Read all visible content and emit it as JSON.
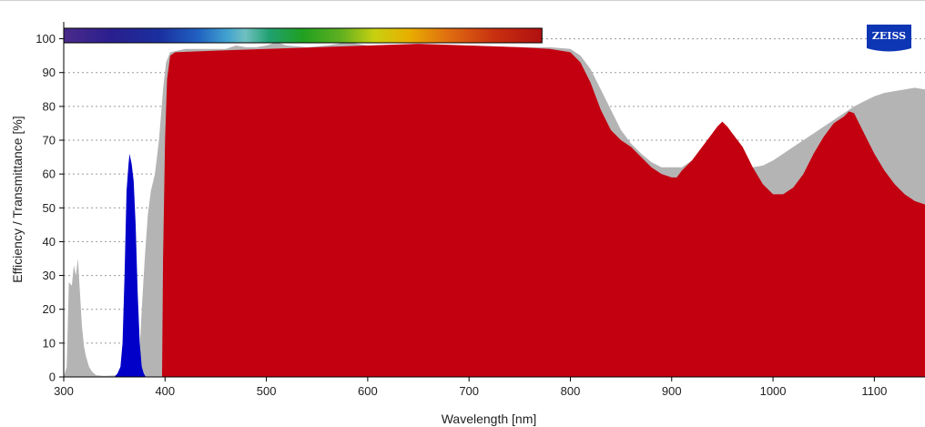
{
  "chart_data": {
    "type": "area",
    "xlabel": "Wavelength [nm]",
    "ylabel": "Efficiency / Transmittance [%]",
    "xlim": [
      300,
      1150
    ],
    "ylim": [
      0,
      105
    ],
    "x_ticks": [
      300,
      400,
      500,
      600,
      700,
      800,
      900,
      1000,
      1100
    ],
    "y_ticks": [
      0,
      10,
      20,
      30,
      40,
      50,
      60,
      70,
      80,
      90,
      100
    ],
    "grid": "horizontal dotted",
    "spectrum_bar": {
      "range_nm": [
        300,
        772
      ]
    },
    "logo": "ZEISS",
    "series": [
      {
        "color": "#b4b4b4",
        "points": [
          [
            300,
            0
          ],
          [
            303,
            3
          ],
          [
            305,
            28
          ],
          [
            308,
            27
          ],
          [
            310,
            33
          ],
          [
            312,
            30
          ],
          [
            314,
            35
          ],
          [
            316,
            25
          ],
          [
            318,
            15
          ],
          [
            320,
            9
          ],
          [
            322,
            6
          ],
          [
            325,
            3
          ],
          [
            328,
            1.5
          ],
          [
            332,
            0.5
          ],
          [
            340,
            0.3
          ],
          [
            355,
            0.5
          ],
          [
            370,
            1
          ],
          [
            374,
            3
          ],
          [
            377,
            20
          ],
          [
            380,
            35
          ],
          [
            383,
            48
          ],
          [
            386,
            55
          ],
          [
            390,
            60
          ],
          [
            394,
            70
          ],
          [
            398,
            85
          ],
          [
            401,
            93
          ],
          [
            405,
            96
          ],
          [
            420,
            97
          ],
          [
            440,
            97
          ],
          [
            460,
            97
          ],
          [
            470,
            98
          ],
          [
            480,
            97.5
          ],
          [
            490,
            97.5
          ],
          [
            500,
            98
          ],
          [
            510,
            99
          ],
          [
            520,
            98
          ],
          [
            540,
            97.5
          ],
          [
            560,
            98
          ],
          [
            580,
            99
          ],
          [
            600,
            98
          ],
          [
            620,
            98
          ],
          [
            650,
            98
          ],
          [
            700,
            98
          ],
          [
            750,
            97.5
          ],
          [
            780,
            97.5
          ],
          [
            800,
            97
          ],
          [
            810,
            95
          ],
          [
            820,
            91
          ],
          [
            830,
            85
          ],
          [
            840,
            79
          ],
          [
            850,
            73
          ],
          [
            860,
            69
          ],
          [
            870,
            66
          ],
          [
            880,
            63.5
          ],
          [
            890,
            62
          ],
          [
            900,
            62
          ],
          [
            910,
            62
          ],
          [
            920,
            64
          ],
          [
            930,
            66
          ],
          [
            940,
            66
          ],
          [
            950,
            65
          ],
          [
            960,
            64
          ],
          [
            970,
            63
          ],
          [
            980,
            62
          ],
          [
            990,
            62.5
          ],
          [
            1000,
            64
          ],
          [
            1010,
            66
          ],
          [
            1020,
            68
          ],
          [
            1030,
            70
          ],
          [
            1040,
            72
          ],
          [
            1050,
            74
          ],
          [
            1060,
            76
          ],
          [
            1070,
            78
          ],
          [
            1080,
            80
          ],
          [
            1090,
            81.5
          ],
          [
            1100,
            83
          ],
          [
            1110,
            84
          ],
          [
            1120,
            84.5
          ],
          [
            1130,
            85
          ],
          [
            1140,
            85.5
          ],
          [
            1150,
            85
          ]
        ]
      },
      {
        "color": "#0000c8",
        "points": [
          [
            350,
            0
          ],
          [
            353,
            1
          ],
          [
            356,
            3
          ],
          [
            358,
            10
          ],
          [
            360,
            30
          ],
          [
            362,
            55
          ],
          [
            364,
            63
          ],
          [
            365,
            66
          ],
          [
            367,
            63
          ],
          [
            369,
            58
          ],
          [
            371,
            45
          ],
          [
            373,
            25
          ],
          [
            375,
            10
          ],
          [
            377,
            3
          ],
          [
            379,
            1
          ],
          [
            381,
            0
          ],
          [
            980,
            0
          ],
          [
            983,
            0.6
          ],
          [
            1115,
            0.6
          ],
          [
            1118,
            0
          ]
        ]
      },
      {
        "color": "#c30010",
        "points": [
          [
            397,
            0
          ],
          [
            398,
            35
          ],
          [
            400,
            70
          ],
          [
            402,
            88
          ],
          [
            405,
            95
          ],
          [
            410,
            96
          ],
          [
            450,
            96.5
          ],
          [
            500,
            97
          ],
          [
            550,
            97.5
          ],
          [
            600,
            98
          ],
          [
            650,
            98.5
          ],
          [
            700,
            98
          ],
          [
            750,
            97.5
          ],
          [
            780,
            97
          ],
          [
            800,
            96
          ],
          [
            810,
            93
          ],
          [
            820,
            87
          ],
          [
            830,
            79
          ],
          [
            840,
            73
          ],
          [
            850,
            70
          ],
          [
            860,
            68
          ],
          [
            870,
            65
          ],
          [
            880,
            62
          ],
          [
            890,
            60
          ],
          [
            900,
            59
          ],
          [
            905,
            59
          ],
          [
            910,
            61
          ],
          [
            920,
            64
          ],
          [
            930,
            68
          ],
          [
            940,
            72
          ],
          [
            945,
            74
          ],
          [
            950,
            75.5
          ],
          [
            955,
            74
          ],
          [
            960,
            72
          ],
          [
            970,
            68
          ],
          [
            980,
            62
          ],
          [
            990,
            57
          ],
          [
            1000,
            54
          ],
          [
            1010,
            54
          ],
          [
            1020,
            56
          ],
          [
            1030,
            60
          ],
          [
            1040,
            66
          ],
          [
            1050,
            71
          ],
          [
            1060,
            75
          ],
          [
            1070,
            77
          ],
          [
            1075,
            78.5
          ],
          [
            1080,
            78
          ],
          [
            1090,
            72
          ],
          [
            1100,
            66
          ],
          [
            1110,
            61
          ],
          [
            1120,
            57
          ],
          [
            1130,
            54
          ],
          [
            1140,
            52
          ],
          [
            1150,
            51
          ],
          [
            1150,
            0
          ]
        ]
      }
    ]
  }
}
